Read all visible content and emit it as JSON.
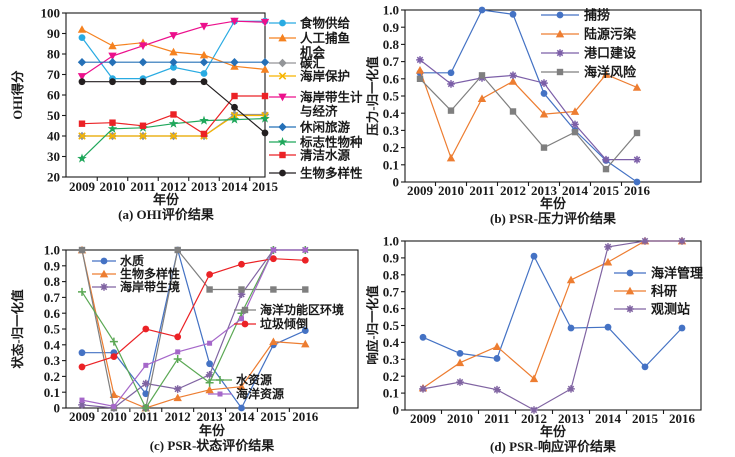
{
  "figure": {
    "background": "#ffffff",
    "frame_color": "#1a1a1a"
  },
  "chart_data": [
    {
      "id": "a",
      "type": "line",
      "caption": "(a) OHI评价结果",
      "xlabel": "年份",
      "ylabel": "OHI得分",
      "x_categories": [
        "2009",
        "2010",
        "2011",
        "2012",
        "2013",
        "2014",
        "2015"
      ],
      "ylim": [
        20,
        100
      ],
      "ytick_values": [
        20,
        30,
        40,
        50,
        60,
        70,
        80,
        90,
        100
      ],
      "ytick_labels": [
        "20",
        "30",
        "40",
        "50",
        "60",
        "70",
        "80",
        "90",
        "100"
      ],
      "grid": false,
      "legend_position": "right-outside",
      "series": [
        {
          "name": "食物供给",
          "name_lines": [
            "食物供给"
          ],
          "color": "#29ABE2",
          "marker": "circle",
          "values": [
            88,
            68,
            68,
            73.5,
            70.5,
            96,
            96
          ]
        },
        {
          "name": "人工捕鱼机会",
          "name_lines": [
            "人工捕鱼",
            "机会"
          ],
          "color": "#F58220",
          "marker": "triangle",
          "values": [
            92,
            84,
            85.5,
            81,
            79.5,
            74,
            72.5
          ]
        },
        {
          "name": "碳汇",
          "name_lines": [
            "碳汇"
          ],
          "color": "#939598",
          "marker": "diamond",
          "values": [
            40,
            40,
            40,
            40,
            40,
            50.5,
            50.5
          ]
        },
        {
          "name": "海岸保护",
          "name_lines": [
            "海岸保护"
          ],
          "color": "#F7B500",
          "marker": "x",
          "values": [
            40,
            40,
            40,
            40,
            40,
            50,
            50
          ]
        },
        {
          "name": "海岸带生计与经济",
          "name_lines": [
            "海岸带生计",
            "与经济"
          ],
          "color": "#EC108C",
          "marker": "triangle-down",
          "values": [
            69,
            79,
            84,
            89,
            93.5,
            96,
            95.5
          ]
        },
        {
          "name": "休闲旅游",
          "name_lines": [
            "休闲旅游"
          ],
          "color": "#2570B7",
          "marker": "diamond",
          "values": [
            76,
            76,
            76,
            76,
            76,
            76,
            76
          ]
        },
        {
          "name": "标志性物种",
          "name_lines": [
            "标志性物种"
          ],
          "color": "#1FA75B",
          "marker": "star",
          "values": [
            29,
            43.5,
            44,
            46,
            47.5,
            48,
            48.5
          ]
        },
        {
          "name": "清洁水源",
          "name_lines": [
            "清洁水源"
          ],
          "color": "#EB2226",
          "marker": "square",
          "values": [
            46,
            46.5,
            45,
            50.5,
            41,
            59.5,
            59.5
          ]
        },
        {
          "name": "生物多样性",
          "name_lines": [
            "生物多样性"
          ],
          "color": "#231F20",
          "marker": "circle",
          "values": [
            66.5,
            66.5,
            66.5,
            66.5,
            66.5,
            54,
            41.5
          ]
        }
      ]
    },
    {
      "id": "b",
      "type": "line",
      "caption": "(b) PSR-压力评价结果",
      "xlabel": "年份",
      "ylabel": "压力-归一化值",
      "x_categories": [
        "2009",
        "2010",
        "2011",
        "2012",
        "2013",
        "2014",
        "2015",
        "2016"
      ],
      "ylim": [
        0,
        1
      ],
      "ytick_values": [
        0,
        0.1,
        0.2,
        0.3,
        0.4,
        0.5,
        0.6,
        0.7,
        0.8,
        0.9,
        1.0
      ],
      "ytick_labels": [
        "0",
        "0.1",
        "0.2",
        "0.3",
        "0.4",
        "0.5",
        "0.6",
        "0.7",
        "0.8",
        "0.9",
        "1.0"
      ],
      "grid": false,
      "legend_position": "top-right-inside",
      "series": [
        {
          "name": "捕捞",
          "name_lines": [
            "捕捞"
          ],
          "color": "#4472C4",
          "marker": "circle",
          "values": [
            0.635,
            0.635,
            1.0,
            0.975,
            0.515,
            0.3,
            0.125,
            0
          ]
        },
        {
          "name": "陆源污染",
          "name_lines": [
            "陆源污染"
          ],
          "color": "#ED7D31",
          "marker": "triangle",
          "values": [
            0.65,
            0.14,
            0.485,
            0.585,
            0.395,
            0.41,
            0.625,
            0.55
          ]
        },
        {
          "name": "港口建设",
          "name_lines": [
            "港口建设"
          ],
          "color": "#7C5FA8",
          "marker": "asterisk",
          "values": [
            0.71,
            0.57,
            0.605,
            0.62,
            0.575,
            0.335,
            0.13,
            0.13
          ]
        },
        {
          "name": "海洋风险",
          "name_lines": [
            "海洋风险"
          ],
          "color": "#7F7F7F",
          "marker": "square",
          "values": [
            0.6,
            0.415,
            0.62,
            0.41,
            0.2,
            0.29,
            0.075,
            0.285
          ]
        }
      ]
    },
    {
      "id": "c",
      "type": "line",
      "caption": "(c) PSR-状态评价结果",
      "xlabel": "年份",
      "ylabel": "状态-归一化值",
      "x_categories": [
        "2009",
        "2010",
        "2011",
        "2012",
        "2013",
        "2014",
        "2015",
        "2016"
      ],
      "ylim": [
        0,
        1
      ],
      "ytick_values": [
        0,
        0.1,
        0.2,
        0.3,
        0.4,
        0.5,
        0.6,
        0.7,
        0.8,
        0.9,
        1.0
      ],
      "ytick_labels": [
        "0",
        "0.1",
        "0.2",
        "0.3",
        "0.4",
        "0.5",
        "0.6",
        "0.7",
        "0.8",
        "0.9",
        "1.0"
      ],
      "grid": false,
      "legend_position": "inside-multi",
      "series": [
        {
          "name": "水质",
          "name_lines": [
            "水质"
          ],
          "color": "#4472C4",
          "marker": "circle",
          "values": [
            0.35,
            0.35,
            0.09,
            1.0,
            0.28,
            0,
            0.4,
            0.49
          ]
        },
        {
          "name": "生物多样性",
          "name_lines": [
            "生物多样性"
          ],
          "color": "#ED7D31",
          "marker": "triangle",
          "values": [
            1.0,
            0.085,
            0,
            0.065,
            0.115,
            0.135,
            0.42,
            0.405
          ]
        },
        {
          "name": "海岸带生境",
          "name_lines": [
            "海岸带生境"
          ],
          "color": "#8064A2",
          "marker": "asterisk",
          "values": [
            0.02,
            0,
            0.155,
            0.12,
            0.21,
            0.72,
            1.0,
            1.0
          ]
        },
        {
          "name": "海洋功能区环境",
          "name_lines": [
            "海洋功能区环境"
          ],
          "color": "#7F7F7F",
          "marker": "square",
          "values": [
            1.0,
            0,
            0,
            1.0,
            0.75,
            0.75,
            0.75,
            0.75
          ]
        },
        {
          "name": "垃圾倾倒",
          "name_lines": [
            "垃圾倾倒"
          ],
          "color": "#EB2226",
          "marker": "circle",
          "values": [
            0.26,
            0.325,
            0.5,
            0.45,
            0.845,
            0.91,
            0.945,
            0.935
          ]
        },
        {
          "name": "水资源",
          "name_lines": [
            "水资源"
          ],
          "color": "#5BA854",
          "marker": "plus",
          "values": [
            0.735,
            0.42,
            0,
            0.31,
            0.16,
            0.6,
            1.0,
            1.0
          ]
        },
        {
          "name": "海洋资源",
          "name_lines": [
            "海洋资源"
          ],
          "color": "#A567C9",
          "marker": "square-small",
          "values": [
            0.05,
            0.01,
            0.27,
            0.355,
            0.41,
            0.565,
            1.0,
            1.0
          ]
        }
      ]
    },
    {
      "id": "d",
      "type": "line",
      "caption": "(d) PSR-响应评价结果",
      "xlabel": "年份",
      "ylabel": "响应-归一化值",
      "x_categories": [
        "2009",
        "2010",
        "2011",
        "2012",
        "2013",
        "2014",
        "2015",
        "2016"
      ],
      "ylim": [
        0,
        1
      ],
      "ytick_values": [
        0,
        0.1,
        0.2,
        0.3,
        0.4,
        0.5,
        0.6,
        0.7,
        0.8,
        0.9,
        1.0
      ],
      "ytick_labels": [
        "0",
        "0.1",
        "0.2",
        "0.3",
        "0.4",
        "0.5",
        "0.6",
        "0.7",
        "0.8",
        "0.9",
        "1.0"
      ],
      "grid": false,
      "legend_position": "right-inside",
      "series": [
        {
          "name": "海洋管理",
          "name_lines": [
            "海洋管理"
          ],
          "color": "#4472C4",
          "marker": "circle",
          "values": [
            0.43,
            0.335,
            0.305,
            0.91,
            0.485,
            0.49,
            0.255,
            0.485
          ]
        },
        {
          "name": "科研",
          "name_lines": [
            "科研"
          ],
          "color": "#ED7D31",
          "marker": "triangle",
          "values": [
            0.13,
            0.28,
            0.375,
            0.185,
            0.77,
            0.875,
            1.0,
            1.0
          ]
        },
        {
          "name": "观测站",
          "name_lines": [
            "观测站"
          ],
          "color": "#8064A2",
          "marker": "asterisk",
          "values": [
            0.125,
            0.165,
            0.12,
            0,
            0.125,
            0.965,
            1.0,
            1.0
          ]
        }
      ]
    }
  ]
}
